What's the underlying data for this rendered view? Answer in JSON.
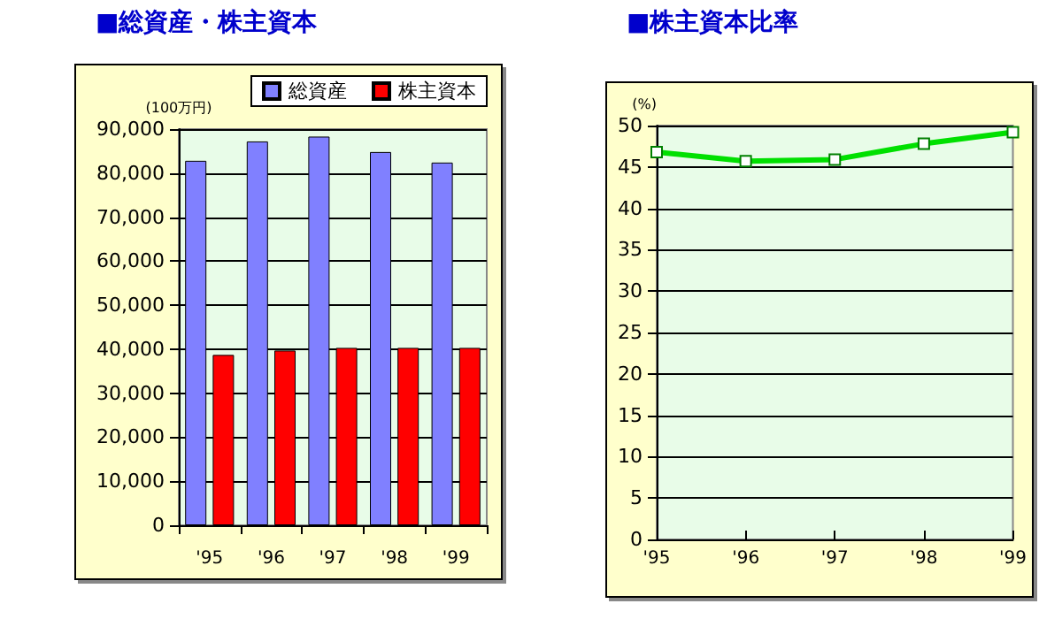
{
  "chart_data": [
    {
      "type": "bar",
      "title": "■総資産・株主資本",
      "ylabel": "(100万円)",
      "categories": [
        "'95",
        "'96",
        "'97",
        "'98",
        "'99"
      ],
      "series": [
        {
          "name": "総資産",
          "color": "#8080ff",
          "values": [
            82800,
            87200,
            88300,
            84800,
            82400
          ]
        },
        {
          "name": "株主資本",
          "color": "#ff0000",
          "values": [
            38700,
            39700,
            40300,
            40300,
            40300
          ]
        }
      ],
      "ylim": [
        0,
        90000
      ],
      "yticks": [
        {
          "value": 0,
          "label": "0"
        },
        {
          "value": 10000,
          "label": "10,000"
        },
        {
          "value": 20000,
          "label": "20,000"
        },
        {
          "value": 30000,
          "label": "30,000"
        },
        {
          "value": 40000,
          "label": "40,000"
        },
        {
          "value": 50000,
          "label": "50,000"
        },
        {
          "value": 60000,
          "label": "60,000"
        },
        {
          "value": 70000,
          "label": "70,000"
        },
        {
          "value": 80000,
          "label": "80,000"
        },
        {
          "value": 90000,
          "label": "90,000"
        }
      ],
      "grid": "y",
      "legend": "top right"
    },
    {
      "type": "line",
      "title": "■株主資本比率",
      "ylabel": "(%)",
      "categories": [
        "'95",
        "'96",
        "'97",
        "'98",
        "'99"
      ],
      "series": [
        {
          "color": "#00e000",
          "values": [
            46.8,
            45.7,
            45.9,
            47.8,
            49.2
          ]
        }
      ],
      "ylim": [
        0,
        50
      ],
      "yticks": [
        0,
        5,
        10,
        15,
        20,
        25,
        30,
        35,
        40,
        45,
        50
      ],
      "grid": "y",
      "marker": "square",
      "line_style": "solid"
    }
  ]
}
